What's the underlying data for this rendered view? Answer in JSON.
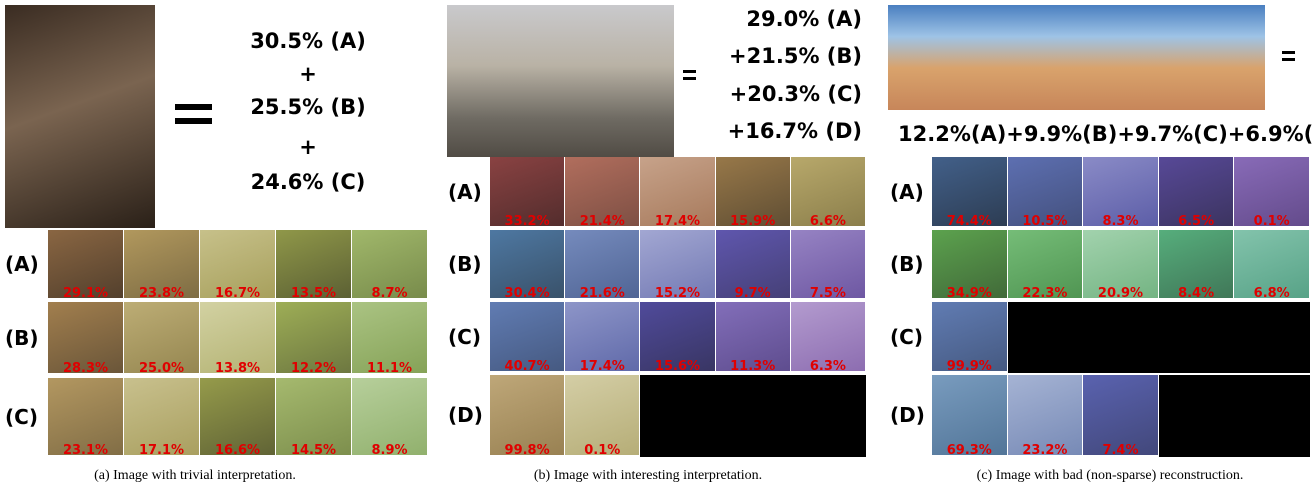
{
  "panels": [
    {
      "equation": [
        "30.5% (A)",
        "+",
        "25.5% (B)",
        "+",
        "24.6% (C)"
      ],
      "rows": [
        {
          "label": "(A)",
          "tiles": [
            "29.1%",
            "23.8%",
            "16.7%",
            "13.5%",
            "8.7%"
          ]
        },
        {
          "label": "(B)",
          "tiles": [
            "28.3%",
            "25.0%",
            "13.8%",
            "12.2%",
            "11.1%"
          ]
        },
        {
          "label": "(C)",
          "tiles": [
            "23.1%",
            "17.1%",
            "16.6%",
            "14.5%",
            "8.9%"
          ]
        }
      ],
      "caption": "(a) Image with trivial interpretation."
    },
    {
      "equation": [
        "29.0% (A)",
        "+21.5% (B)",
        "+20.3% (C)",
        "+16.7% (D)"
      ],
      "rows": [
        {
          "label": "(A)",
          "tiles": [
            "33.2%",
            "21.4%",
            "17.4%",
            "15.9%",
            "6.6%"
          ]
        },
        {
          "label": "(B)",
          "tiles": [
            "30.4%",
            "21.6%",
            "15.2%",
            "9.7%",
            "7.5%"
          ]
        },
        {
          "label": "(C)",
          "tiles": [
            "40.7%",
            "17.4%",
            "15.6%",
            "11.3%",
            "6.3%"
          ]
        },
        {
          "label": "(D)",
          "tiles": [
            "99.8%",
            "0.1%"
          ]
        }
      ],
      "caption": "(b) Image with interesting interpretation."
    },
    {
      "equation": [
        "12.2%(A)+9.9%(B)+9.7%(C)+6.9%(D)"
      ],
      "rows": [
        {
          "label": "(A)",
          "tiles": [
            "74.4%",
            "10.5%",
            "8.3%",
            "6.5%",
            "0.1%"
          ]
        },
        {
          "label": "(B)",
          "tiles": [
            "34.9%",
            "22.3%",
            "20.9%",
            "8.4%",
            "6.8%"
          ]
        },
        {
          "label": "(C)",
          "tiles": [
            "99.9%"
          ]
        },
        {
          "label": "(D)",
          "tiles": [
            "69.3%",
            "23.2%",
            "7.4%"
          ]
        }
      ],
      "caption": "(c) Image with bad (non-sparse) reconstruction."
    }
  ]
}
